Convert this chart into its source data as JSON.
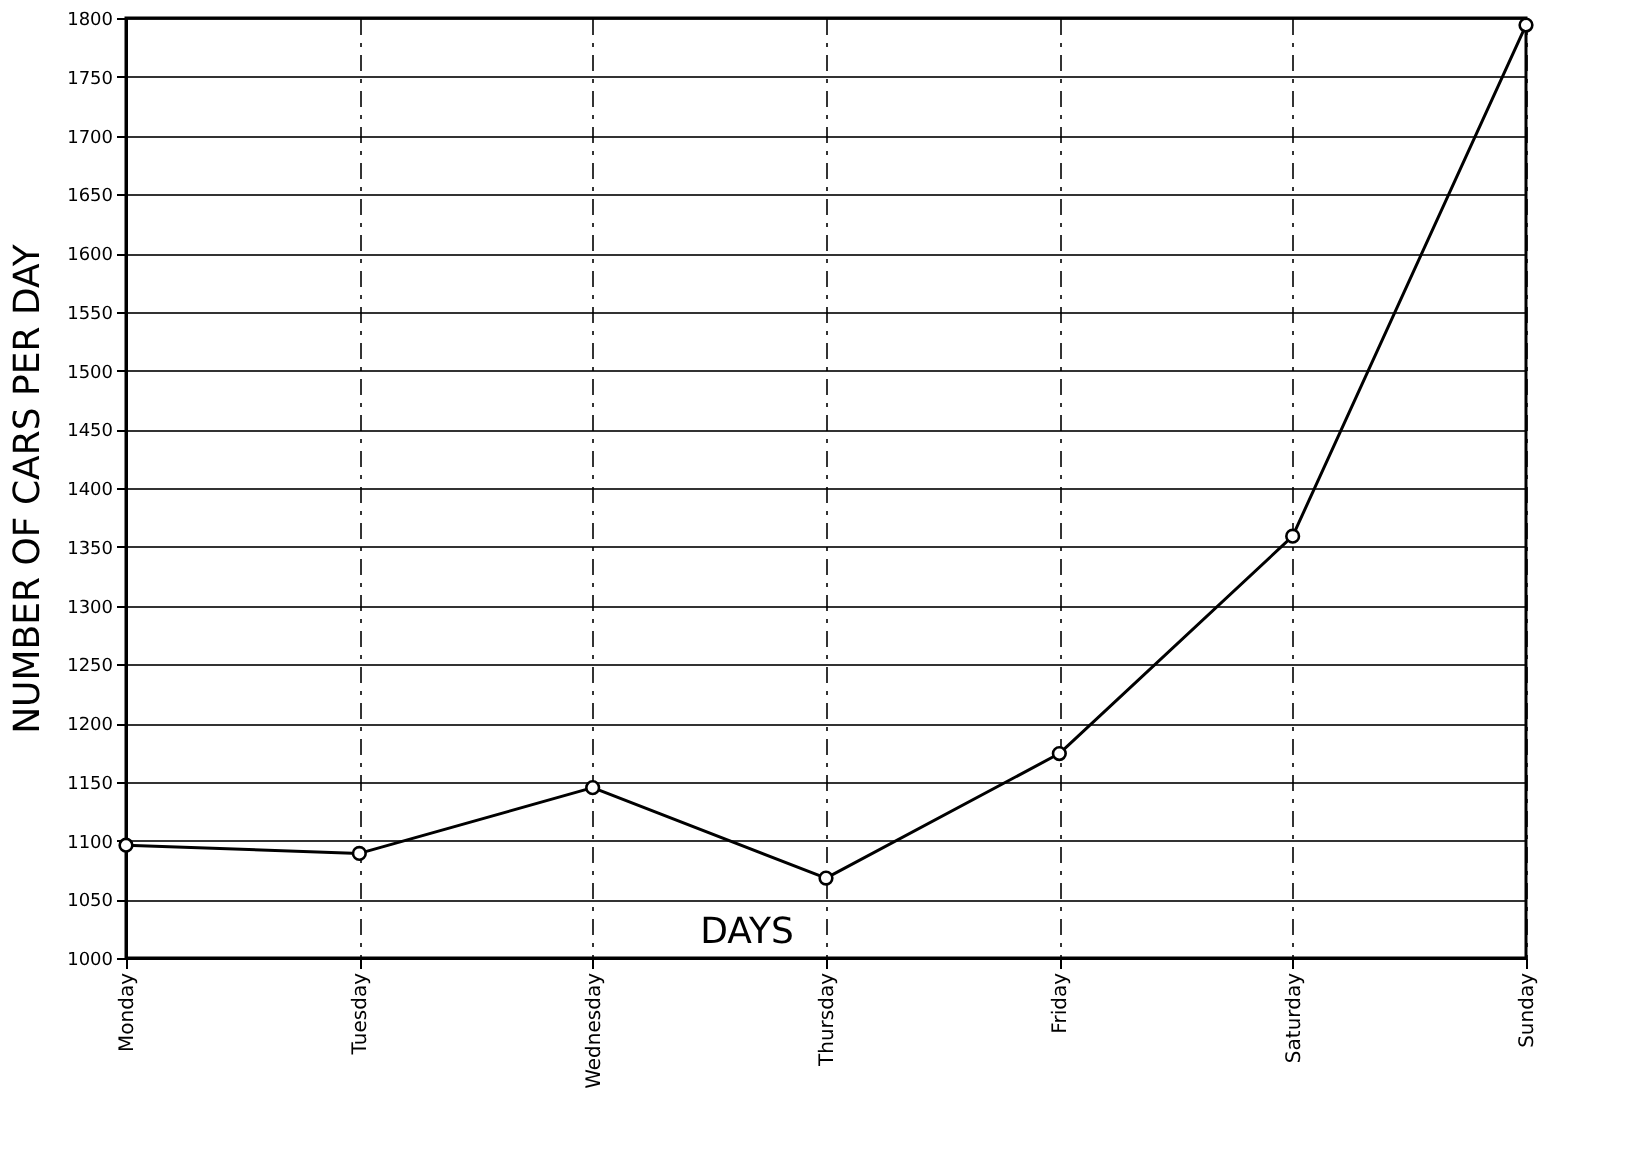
{
  "chart_data": {
    "type": "line",
    "xlabel": "DAYS",
    "ylabel": "NUMBER OF CARS PER DAY",
    "categories": [
      "Monday",
      "Tuesday",
      "Wednesday",
      "Thursday",
      "Friday",
      "Saturday",
      "Sunday"
    ],
    "series": [
      {
        "color": "#000000",
        "values": [
          1096,
          1089,
          1145,
          1068,
          1174,
          1359,
          1794
        ]
      }
    ],
    "ylim": [
      1000,
      1800
    ],
    "yticks": [
      1000,
      1050,
      1100,
      1150,
      1200,
      1250,
      1300,
      1350,
      1400,
      1450,
      1500,
      1550,
      1600,
      1650,
      1700,
      1750,
      1800
    ],
    "grid": true,
    "marker": "circle",
    "line_style": "solid",
    "legend": false
  }
}
